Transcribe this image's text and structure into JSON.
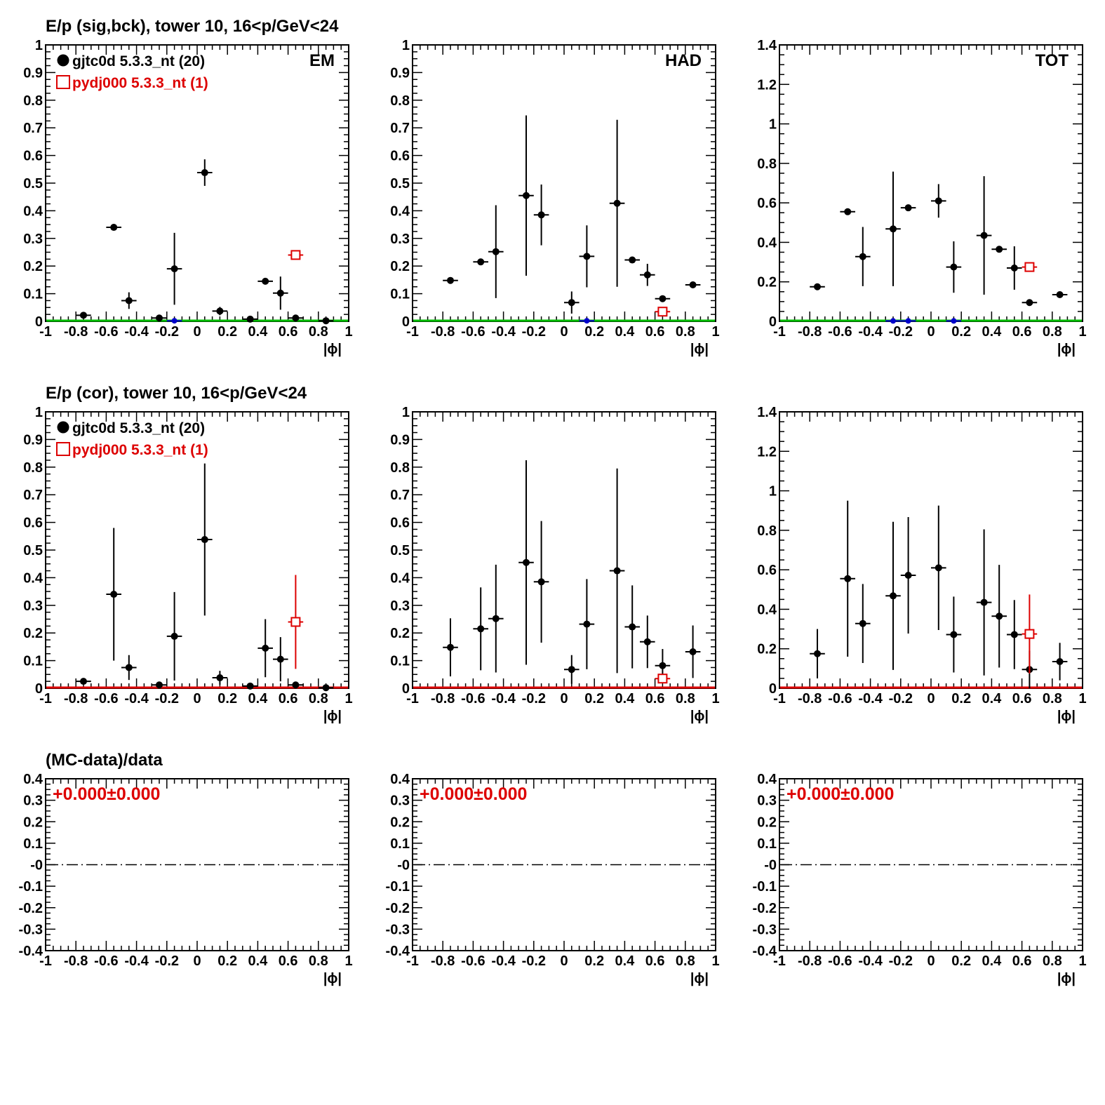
{
  "colors": {
    "data": "#000000",
    "mc": "#dd0000",
    "baseline_top": "#00bb00",
    "baseline_mid": "#dd0000",
    "blue_marker": "#0000cc"
  },
  "chart_data": [
    {
      "type": "scatter",
      "title": "E/p (sig,bck), tower 10, 16<p/GeV<24",
      "panel_label": "EM",
      "xlabel": "|ϕ|",
      "xlim": [
        -1,
        1
      ],
      "ylim": [
        0,
        1
      ],
      "xticks": [
        "-1",
        "-0.8",
        "-0.6",
        "-0.4",
        "-0.2",
        "0",
        "0.2",
        "0.4",
        "0.6",
        "0.8",
        "1"
      ],
      "yticks": [
        "0",
        "0.1",
        "0.2",
        "0.3",
        "0.4",
        "0.5",
        "0.6",
        "0.7",
        "0.8",
        "0.9",
        "1"
      ],
      "legend": [
        {
          "marker": "filled-circle",
          "label": "gjtc0d 5.3.3_nt (20)"
        },
        {
          "marker": "open-square",
          "label": "pydj000 5.3.3_nt (1)"
        }
      ],
      "series": [
        {
          "name": "gjtc0d 5.3.3_nt (20)",
          "marker": "filled-circle",
          "points": [
            [
              -0.75,
              0.022,
              0
            ],
            [
              -0.55,
              0.34,
              0
            ],
            [
              -0.45,
              0.075,
              0.03
            ],
            [
              -0.25,
              0.012,
              0
            ],
            [
              -0.15,
              0.19,
              0.13
            ],
            [
              0.05,
              0.538,
              0.048
            ],
            [
              0.15,
              0.037,
              0.015
            ],
            [
              0.35,
              0.008,
              0
            ],
            [
              0.45,
              0.145,
              0
            ],
            [
              0.55,
              0.102,
              0.06
            ],
            [
              0.65,
              0.012,
              0
            ],
            [
              0.85,
              0.002,
              0
            ]
          ]
        },
        {
          "name": "pydj000 5.3.3_nt (1)",
          "marker": "open-square",
          "points": [
            [
              0.65,
              0.24,
              0
            ]
          ]
        },
        {
          "marker": "blue-dot",
          "points": [
            [
              -0.15,
              0.002,
              0
            ]
          ]
        }
      ]
    },
    {
      "type": "scatter",
      "panel_label": "HAD",
      "xlabel": "|ϕ|",
      "xlim": [
        -1,
        1
      ],
      "ylim": [
        0,
        1
      ],
      "xticks": [
        "-1",
        "-0.8",
        "-0.6",
        "-0.4",
        "-0.2",
        "0",
        "0.2",
        "0.4",
        "0.6",
        "0.8",
        "1"
      ],
      "yticks": [
        "0",
        "0.1",
        "0.2",
        "0.3",
        "0.4",
        "0.5",
        "0.6",
        "0.7",
        "0.8",
        "0.9",
        "1"
      ],
      "series": [
        {
          "name": "gjtc0d 5.3.3_nt (20)",
          "marker": "filled-circle",
          "points": [
            [
              -0.75,
              0.148,
              0
            ],
            [
              -0.55,
              0.215,
              0
            ],
            [
              -0.45,
              0.252,
              0.168
            ],
            [
              -0.25,
              0.455,
              0.29
            ],
            [
              -0.15,
              0.385,
              0.11
            ],
            [
              0.05,
              0.068,
              0.04
            ],
            [
              0.15,
              0.235,
              0.112
            ],
            [
              0.35,
              0.427,
              0.302
            ],
            [
              0.45,
              0.222,
              0
            ],
            [
              0.55,
              0.168,
              0.04
            ],
            [
              0.65,
              0.082,
              0
            ],
            [
              0.85,
              0.132,
              0
            ]
          ]
        },
        {
          "name": "pydj000 5.3.3_nt (1)",
          "marker": "open-square",
          "points": [
            [
              0.65,
              0.035,
              0
            ]
          ]
        },
        {
          "marker": "blue-dot",
          "points": [
            [
              0.15,
              0.002,
              0
            ]
          ]
        }
      ]
    },
    {
      "type": "scatter",
      "panel_label": "TOT",
      "xlabel": "|ϕ|",
      "xlim": [
        -1,
        1
      ],
      "ylim": [
        0,
        1.4
      ],
      "xticks": [
        "-1",
        "-0.8",
        "-0.6",
        "-0.4",
        "-0.2",
        "0",
        "0.2",
        "0.4",
        "0.6",
        "0.8",
        "1"
      ],
      "yticks": [
        "0",
        "0.2",
        "0.4",
        "0.6",
        "0.8",
        "1",
        "1.2",
        "1.4"
      ],
      "series": [
        {
          "name": "gjtc0d 5.3.3_nt (20)",
          "marker": "filled-circle",
          "points": [
            [
              -0.75,
              0.175,
              0
            ],
            [
              -0.55,
              0.555,
              0
            ],
            [
              -0.45,
              0.328,
              0.15
            ],
            [
              -0.25,
              0.468,
              0.29
            ],
            [
              -0.15,
              0.575,
              0
            ],
            [
              0.05,
              0.61,
              0.085
            ],
            [
              0.15,
              0.275,
              0.13
            ],
            [
              0.35,
              0.435,
              0.3
            ],
            [
              0.45,
              0.365,
              0
            ],
            [
              0.55,
              0.27,
              0.11
            ],
            [
              0.65,
              0.095,
              0
            ],
            [
              0.85,
              0.135,
              0
            ]
          ]
        },
        {
          "name": "pydj000 5.3.3_nt (1)",
          "marker": "open-square",
          "points": [
            [
              0.65,
              0.275,
              0
            ]
          ]
        },
        {
          "marker": "blue-dot",
          "points": [
            [
              -0.25,
              0.002,
              0
            ],
            [
              -0.15,
              0.002,
              0
            ],
            [
              0.15,
              0.002,
              0
            ]
          ]
        }
      ]
    },
    {
      "type": "scatter",
      "title": "E/p (cor), tower 10, 16<p/GeV<24",
      "xlabel": "|ϕ|",
      "xlim": [
        -1,
        1
      ],
      "ylim": [
        0,
        1
      ],
      "xticks": [
        "-1",
        "-0.8",
        "-0.6",
        "-0.4",
        "-0.2",
        "0",
        "0.2",
        "0.4",
        "0.6",
        "0.8",
        "1"
      ],
      "yticks": [
        "0",
        "0.1",
        "0.2",
        "0.3",
        "0.4",
        "0.5",
        "0.6",
        "0.7",
        "0.8",
        "0.9",
        "1"
      ],
      "legend": [
        {
          "marker": "filled-circle",
          "label": "gjtc0d 5.3.3_nt (20)"
        },
        {
          "marker": "open-square",
          "label": "pydj000 5.3.3_nt (1)"
        }
      ],
      "series": [
        {
          "name": "gjtc0d 5.3.3_nt (20)",
          "marker": "filled-circle",
          "points": [
            [
              -0.75,
              0.025,
              0.01
            ],
            [
              -0.55,
              0.34,
              0.24
            ],
            [
              -0.45,
              0.075,
              0.045
            ],
            [
              -0.25,
              0.012,
              0
            ],
            [
              -0.15,
              0.188,
              0.16
            ],
            [
              0.05,
              0.538,
              0.275
            ],
            [
              0.15,
              0.038,
              0.025
            ],
            [
              0.35,
              0.008,
              0
            ],
            [
              0.45,
              0.145,
              0.105
            ],
            [
              0.55,
              0.105,
              0.08
            ],
            [
              0.65,
              0.012,
              0
            ],
            [
              0.85,
              0.002,
              0
            ]
          ]
        },
        {
          "name": "pydj000 5.3.3_nt (1)",
          "marker": "open-square",
          "points": [
            [
              0.65,
              0.24,
              0.17
            ]
          ]
        }
      ]
    },
    {
      "type": "scatter",
      "xlabel": "|ϕ|",
      "xlim": [
        -1,
        1
      ],
      "ylim": [
        0,
        1
      ],
      "xticks": [
        "-1",
        "-0.8",
        "-0.6",
        "-0.4",
        "-0.2",
        "0",
        "0.2",
        "0.4",
        "0.6",
        "0.8",
        "1"
      ],
      "yticks": [
        "0",
        "0.1",
        "0.2",
        "0.3",
        "0.4",
        "0.5",
        "0.6",
        "0.7",
        "0.8",
        "0.9",
        "1"
      ],
      "series": [
        {
          "name": "gjtc0d 5.3.3_nt (20)",
          "marker": "filled-circle",
          "points": [
            [
              -0.75,
              0.148,
              0.105
            ],
            [
              -0.55,
              0.215,
              0.15
            ],
            [
              -0.45,
              0.252,
              0.195
            ],
            [
              -0.25,
              0.455,
              0.37
            ],
            [
              -0.15,
              0.385,
              0.22
            ],
            [
              0.05,
              0.068,
              0.052
            ],
            [
              0.15,
              0.232,
              0.163
            ],
            [
              0.35,
              0.425,
              0.37
            ],
            [
              0.45,
              0.222,
              0.15
            ],
            [
              0.55,
              0.168,
              0.095
            ],
            [
              0.65,
              0.082,
              0.06
            ],
            [
              0.85,
              0.132,
              0.095
            ]
          ]
        },
        {
          "name": "pydj000 5.3.3_nt (1)",
          "marker": "open-square",
          "points": [
            [
              0.65,
              0.035,
              0
            ]
          ]
        }
      ]
    },
    {
      "type": "scatter",
      "xlabel": "|ϕ|",
      "xlim": [
        -1,
        1
      ],
      "ylim": [
        0,
        1.4
      ],
      "xticks": [
        "-1",
        "-0.8",
        "-0.6",
        "-0.4",
        "-0.2",
        "0",
        "0.2",
        "0.4",
        "0.6",
        "0.8",
        "1"
      ],
      "yticks": [
        "0",
        "0.2",
        "0.4",
        "0.6",
        "0.8",
        "1",
        "1.2",
        "1.4"
      ],
      "series": [
        {
          "name": "gjtc0d 5.3.3_nt (20)",
          "marker": "filled-circle",
          "points": [
            [
              -0.75,
              0.175,
              0.125
            ],
            [
              -0.55,
              0.555,
              0.395
            ],
            [
              -0.45,
              0.328,
              0.2
            ],
            [
              -0.25,
              0.468,
              0.375
            ],
            [
              -0.15,
              0.572,
              0.295
            ],
            [
              0.05,
              0.61,
              0.315
            ],
            [
              0.15,
              0.272,
              0.192
            ],
            [
              0.35,
              0.435,
              0.37
            ],
            [
              0.45,
              0.365,
              0.26
            ],
            [
              0.55,
              0.272,
              0.175
            ],
            [
              0.65,
              0.095,
              0.095
            ],
            [
              0.85,
              0.135,
              0.095
            ]
          ]
        },
        {
          "name": "pydj000 5.3.3_nt (1)",
          "marker": "open-square",
          "points": [
            [
              0.65,
              0.275,
              0.2
            ]
          ]
        }
      ]
    },
    {
      "type": "line",
      "title": "(MC-data)/data",
      "ratio_label": "+0.000±0.000",
      "xlabel": "|ϕ|",
      "xlim": [
        -1,
        1
      ],
      "ylim": [
        -0.4,
        0.4
      ],
      "xticks": [
        "-1",
        "-0.8",
        "-0.6",
        "-0.4",
        "-0.2",
        "0",
        "0.2",
        "0.4",
        "0.6",
        "0.8",
        "1"
      ],
      "yticks": [
        "-0.4",
        "-0.3",
        "-0.2",
        "-0.1",
        "-0",
        "0.1",
        "0.2",
        "0.3",
        "0.4"
      ],
      "reference_line": 0
    },
    {
      "type": "line",
      "ratio_label": "+0.000±0.000",
      "xlabel": "|ϕ|",
      "xlim": [
        -1,
        1
      ],
      "ylim": [
        -0.4,
        0.4
      ],
      "xticks": [
        "-1",
        "-0.8",
        "-0.6",
        "-0.4",
        "-0.2",
        "0",
        "0.2",
        "0.4",
        "0.6",
        "0.8",
        "1"
      ],
      "yticks": [
        "-0.4",
        "-0.3",
        "-0.2",
        "-0.1",
        "-0",
        "0.1",
        "0.2",
        "0.3",
        "0.4"
      ],
      "reference_line": 0
    },
    {
      "type": "line",
      "ratio_label": "+0.000±0.000",
      "xlabel": "|ϕ|",
      "xlim": [
        -1,
        1
      ],
      "ylim": [
        -0.4,
        0.4
      ],
      "xticks": [
        "-1",
        "-0.8",
        "-0.6",
        "-0.4",
        "-0.2",
        "0",
        "0.2",
        "0.4",
        "0.6",
        "0.8",
        "1"
      ],
      "yticks": [
        "-0.4",
        "-0.3",
        "-0.2",
        "-0.1",
        "-0",
        "0.1",
        "0.2",
        "0.3",
        "0.4"
      ],
      "reference_line": 0
    }
  ]
}
